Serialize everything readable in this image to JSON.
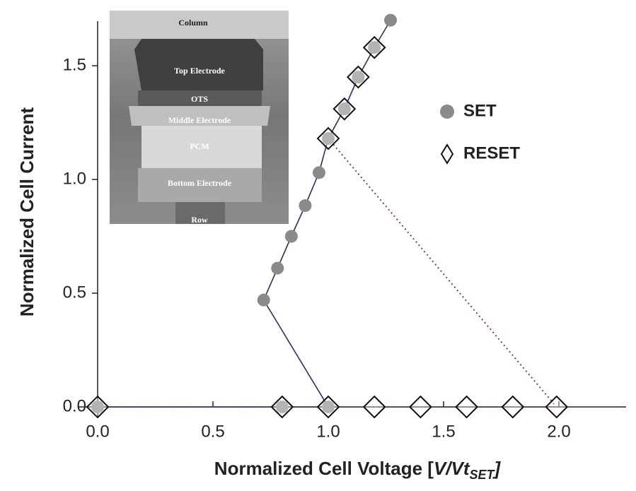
{
  "chart_data": {
    "type": "scatter",
    "xlabel": [
      "Normalized Cell Voltage [",
      "V/Vt",
      "SET",
      "]"
    ],
    "ylabel": "Normalized Cell Current",
    "xlim": [
      -0.09,
      2.3
    ],
    "ylim": [
      -0.05,
      1.72
    ],
    "xticks": [
      {
        "value": 0,
        "label": "0.0"
      },
      0.5,
      {
        "value": 1,
        "label": "1.0"
      },
      1.5,
      {
        "value": 2,
        "label": "2.0"
      }
    ],
    "yticks": [
      {
        "value": 0,
        "label": "0.0"
      },
      0.5,
      {
        "value": 1,
        "label": "1.0"
      },
      1.5
    ],
    "series": [
      {
        "name": "SET",
        "color": "#8a8a8a",
        "line_color": "#2e2e5c",
        "marker": "circle",
        "line": "solid",
        "x": [
          0,
          0.8,
          1.0,
          0.72,
          0.78,
          0.84,
          0.9,
          0.96,
          1.0,
          1.07,
          1.13,
          1.2,
          1.27
        ],
        "y": [
          0,
          0,
          0,
          0.47,
          0.61,
          0.75,
          0.885,
          1.03,
          1.18,
          1.31,
          1.45,
          1.58,
          1.7
        ]
      },
      {
        "name": "RESET",
        "color": "#ffffff",
        "line_color": "#7a3a6a",
        "marker": "diamond",
        "line": "dotted",
        "x": [
          0,
          0.8,
          1.0,
          1.2,
          1.4,
          1.6,
          1.8,
          1.99,
          1.0,
          1.07,
          1.13,
          1.2
        ],
        "y": [
          0,
          0,
          0,
          0,
          0,
          0,
          0,
          0,
          1.18,
          1.31,
          1.45,
          1.58
        ]
      }
    ],
    "inset": {
      "labels": [
        "Column",
        "Top Electrode",
        "OTS",
        "Middle Electrode",
        "PCM",
        "Bottom Electrode",
        "Row"
      ]
    }
  }
}
